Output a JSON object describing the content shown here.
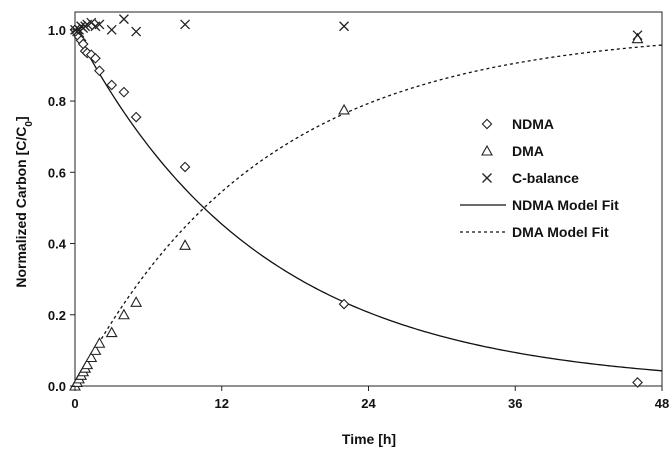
{
  "chart_data": {
    "type": "scatter",
    "xlabel": "Time [h]",
    "ylabel": "Normalized Carbon [C/C",
    "ylabel_sub": "0",
    "ylabel_close": "]",
    "xlim": [
      0,
      48
    ],
    "ylim": [
      0.0,
      1.05
    ],
    "xticks": [
      0,
      12,
      24,
      36,
      48
    ],
    "yticks": [
      0.0,
      0.2,
      0.4,
      0.6,
      0.8,
      1.0
    ],
    "grid": false,
    "legend_position": "right",
    "series": [
      {
        "name": "NDMA",
        "marker": "diamond",
        "x": [
          0.0,
          0.17,
          0.33,
          0.5,
          0.67,
          0.83,
          1.0,
          1.33,
          1.67,
          2.0,
          3.0,
          4.0,
          5.0,
          9.0,
          22.0,
          46.0
        ],
        "y": [
          1.0,
          0.99,
          0.98,
          0.97,
          0.96,
          0.94,
          0.935,
          0.93,
          0.92,
          0.885,
          0.845,
          0.825,
          0.755,
          0.615,
          0.23,
          0.01
        ]
      },
      {
        "name": "DMA",
        "marker": "triangle",
        "x": [
          0.0,
          0.17,
          0.33,
          0.5,
          0.67,
          0.83,
          1.0,
          1.33,
          1.67,
          2.0,
          3.0,
          4.0,
          5.0,
          9.0,
          22.0,
          46.0
        ],
        "y": [
          0.0,
          0.01,
          0.02,
          0.03,
          0.04,
          0.05,
          0.06,
          0.08,
          0.1,
          0.12,
          0.15,
          0.2,
          0.235,
          0.395,
          0.775,
          0.975
        ]
      },
      {
        "name": "C-balance",
        "marker": "x",
        "x": [
          0.0,
          0.17,
          0.33,
          0.5,
          0.67,
          0.83,
          1.0,
          1.33,
          1.67,
          2.0,
          3.0,
          4.0,
          5.0,
          9.0,
          22.0,
          46.0
        ],
        "y": [
          1.0,
          0.995,
          1.0,
          1.01,
          1.005,
          1.01,
          1.015,
          1.02,
          1.01,
          1.015,
          1.0,
          1.03,
          0.995,
          1.015,
          1.01,
          0.985
        ]
      },
      {
        "name": "NDMA Model Fit",
        "style": "solid",
        "model": "exp_decay",
        "k": 0.0657
      },
      {
        "name": "DMA Model Fit",
        "style": "dotted",
        "model": "exp_rise",
        "k": 0.0657
      }
    ]
  }
}
